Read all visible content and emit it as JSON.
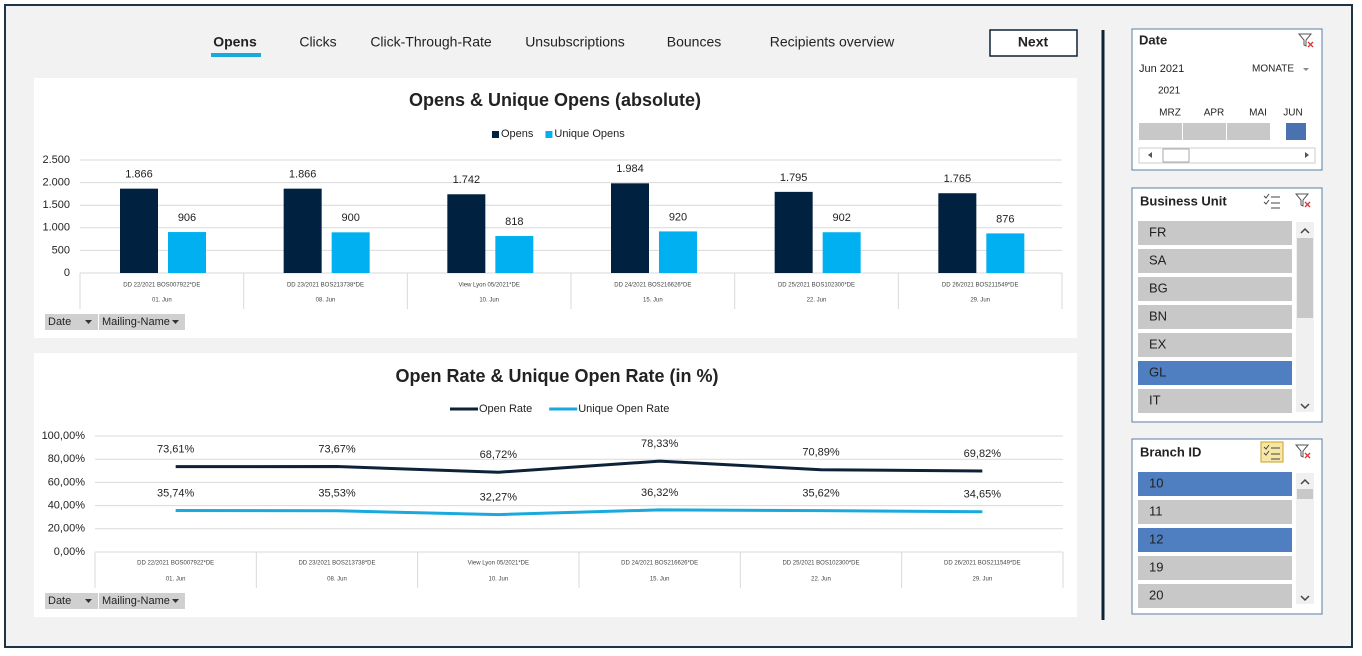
{
  "tabs": [
    "Opens",
    "Clicks",
    "Click-Through-Rate",
    "Unsubscriptions",
    "Bounces",
    "Recipients overview"
  ],
  "active_tab": 0,
  "next_button": "Next",
  "chart_data": [
    {
      "type": "bar",
      "title": "Opens & Unique Opens (absolute)",
      "categories": [
        "DD 22/2021 BOS007922*DE",
        "DD 23/2021 BOS213738*DE",
        "View Lyon 05/2021*DE",
        "DD 24/2021 BOS216626*DE",
        "DD 25/2021 BOS102300*DE",
        "DD 26/2021 BOS211549*DE"
      ],
      "dates": [
        "01. Jun",
        "08. Jun",
        "10. Jun",
        "15. Jun",
        "22. Jun",
        "29. Jun"
      ],
      "series": [
        {
          "name": "Opens",
          "color": "#002240",
          "values": [
            1866,
            1866,
            1742,
            1984,
            1795,
            1765
          ],
          "value_labels": [
            "1.866",
            "1.866",
            "1.742",
            "1.984",
            "1.795",
            "1.765"
          ]
        },
        {
          "name": "Unique Opens",
          "color": "#00b0f0",
          "values": [
            906,
            900,
            818,
            920,
            902,
            876
          ]
        }
      ],
      "ylim": [
        0,
        2500
      ],
      "yticks": [
        0,
        500,
        {
          "value": 1000,
          "label": "1.000"
        },
        {
          "value": 1500,
          "label": "1.500"
        },
        {
          "value": 2000,
          "label": "2.000"
        },
        {
          "value": 2500,
          "label": "2.500"
        }
      ],
      "grid": true,
      "legend": "top",
      "filter_buttons": [
        "Date",
        "Mailing-Name"
      ]
    },
    {
      "type": "line",
      "title": "Open Rate & Unique Open Rate (in %)",
      "categories": [
        "DD 22/2021 BOS007922*DE",
        "DD 23/2021 BOS213738*DE",
        "View Lyon 05/2021*DE",
        "DD 24/2021 BOS216626*DE",
        "DD 25/2021 BOS102300*DE",
        "DD 26/2021 BOS211549*DE"
      ],
      "dates": [
        "01. Jun",
        "08. Jun",
        "10. Jun",
        "15. Jun",
        "22. Jun",
        "29. Jun"
      ],
      "series": [
        {
          "name": "Open Rate",
          "color": "#0d2238",
          "values": [
            73.61,
            73.67,
            68.72,
            78.33,
            70.89,
            69.82
          ],
          "value_labels": [
            "73,61%",
            "73,67%",
            "68,72%",
            "78,33%",
            "70,89%",
            "69,82%"
          ]
        },
        {
          "name": "Unique Open Rate",
          "color": "#1aa9dc",
          "values": [
            35.74,
            35.53,
            32.27,
            36.32,
            35.62,
            34.65
          ],
          "value_labels": [
            "35,74%",
            "35,53%",
            "32,27%",
            "36,32%",
            "35,62%",
            "34,65%"
          ]
        }
      ],
      "ylim": [
        0,
        100
      ],
      "yticks": [
        {
          "value": 0,
          "label": "0,00%"
        },
        {
          "value": 20,
          "label": "20,00%"
        },
        {
          "value": 40,
          "label": "40,00%"
        },
        {
          "value": 60,
          "label": "60,00%"
        },
        {
          "value": 80,
          "label": "80,00%"
        },
        {
          "value": 100,
          "label": "100,00%"
        }
      ],
      "grid": true,
      "legend": "top",
      "filter_buttons": [
        "Date",
        "Mailing-Name"
      ]
    }
  ],
  "date_slicer": {
    "title": "Date",
    "period": "Jun 2021",
    "level": "MONATE",
    "year": "2021",
    "months": [
      "MRZ",
      "APR",
      "MAI",
      "JUN"
    ],
    "selected_month": 3
  },
  "business_unit_slicer": {
    "title": "Business Unit",
    "items": [
      "FR",
      "SA",
      "BG",
      "BN",
      "EX",
      "GL",
      "IT"
    ],
    "selected": [
      5
    ]
  },
  "branch_slicer": {
    "title": "Branch ID",
    "items": [
      "10",
      "11",
      "12",
      "19",
      "20"
    ],
    "selected": [
      0,
      2
    ]
  }
}
